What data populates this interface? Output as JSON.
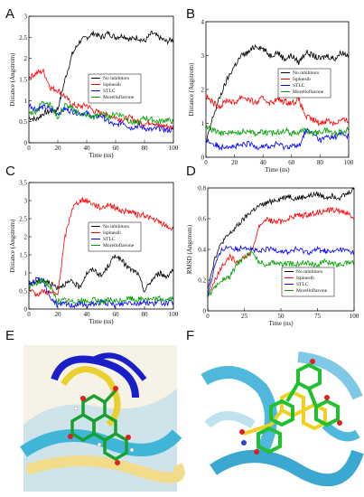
{
  "colors": {
    "none": "#000000",
    "ispinesib": "#ff0000",
    "stlc": "#0000ff",
    "morelloflavone": "#00a000"
  },
  "chart_data": [
    {
      "panel": "A",
      "type": "line",
      "xlabel": "Time (ns)",
      "ylabel": "Distance (Angstrom)",
      "xlim": [
        0,
        100
      ],
      "ylim": [
        0,
        3
      ],
      "xticks": [
        "0",
        "20",
        "40",
        "60",
        "80",
        "100"
      ],
      "yticks": [
        "0",
        "0.5",
        "1",
        "1.5",
        "2",
        "2.5",
        "3"
      ],
      "x": [
        0,
        5,
        10,
        15,
        20,
        25,
        30,
        35,
        40,
        45,
        50,
        55,
        60,
        65,
        70,
        75,
        80,
        85,
        90,
        95,
        100
      ],
      "series": [
        {
          "name": "No inhibitors",
          "color": "#000000",
          "values": [
            0.6,
            0.55,
            0.7,
            0.75,
            0.8,
            1.5,
            2.1,
            2.4,
            2.5,
            2.6,
            2.5,
            2.6,
            2.5,
            2.55,
            2.45,
            2.5,
            2.4,
            2.6,
            2.5,
            2.4,
            2.45
          ]
        },
        {
          "name": "Ispinesib",
          "color": "#ff0000",
          "values": [
            1.55,
            1.65,
            1.7,
            1.3,
            1.25,
            1.1,
            0.9,
            0.85,
            0.9,
            0.75,
            0.7,
            0.65,
            0.6,
            0.55,
            0.6,
            0.5,
            0.45,
            0.5,
            0.4,
            0.4,
            0.35
          ]
        },
        {
          "name": "STLC",
          "color": "#0000ff",
          "values": [
            0.9,
            0.8,
            0.85,
            0.8,
            0.7,
            0.8,
            0.75,
            0.7,
            0.7,
            0.6,
            0.65,
            0.5,
            0.4,
            0.5,
            0.35,
            0.4,
            0.35,
            0.3,
            0.35,
            0.3,
            0.3
          ]
        },
        {
          "name": "Morelloflavone",
          "color": "#00a000",
          "values": [
            0.7,
            0.75,
            1.0,
            0.9,
            0.6,
            0.9,
            0.8,
            0.7,
            0.65,
            0.6,
            0.7,
            0.6,
            0.7,
            0.65,
            0.5,
            0.45,
            0.6,
            0.55,
            0.5,
            0.55,
            0.5
          ]
        }
      ]
    },
    {
      "panel": "B",
      "type": "line",
      "xlabel": "Time (ns)",
      "ylabel": "Distance (Angstrom)",
      "xlim": [
        0,
        100
      ],
      "ylim": [
        0,
        4
      ],
      "xticks": [
        "0",
        "20",
        "40",
        "60",
        "80",
        "100"
      ],
      "yticks": [
        "0",
        "1",
        "2",
        "3",
        "4"
      ],
      "x": [
        0,
        5,
        10,
        15,
        20,
        25,
        30,
        35,
        40,
        45,
        50,
        55,
        60,
        65,
        70,
        75,
        80,
        85,
        90,
        95,
        100
      ],
      "series": [
        {
          "name": "No inhibitors",
          "color": "#000000",
          "values": [
            0.4,
            1.2,
            1.8,
            2.3,
            2.7,
            3.0,
            3.1,
            3.3,
            3.2,
            3.0,
            3.1,
            2.9,
            3.0,
            2.8,
            3.1,
            3.0,
            2.9,
            3.0,
            2.9,
            3.1,
            3.0
          ]
        },
        {
          "name": "Ispinesib",
          "color": "#ff0000",
          "values": [
            1.8,
            1.6,
            1.5,
            1.7,
            1.6,
            1.8,
            1.7,
            1.6,
            1.75,
            1.6,
            1.7,
            1.65,
            1.6,
            1.7,
            1.2,
            1.1,
            1.0,
            1.1,
            1.0,
            1.1,
            1.05
          ]
        },
        {
          "name": "STLC",
          "color": "#0000ff",
          "values": [
            0.5,
            0.4,
            0.3,
            0.35,
            0.3,
            0.35,
            0.4,
            0.3,
            0.35,
            0.3,
            0.4,
            0.3,
            0.35,
            0.3,
            0.8,
            0.7,
            0.5,
            0.6,
            0.6,
            0.7,
            0.6
          ]
        },
        {
          "name": "Morelloflavone",
          "color": "#00a000",
          "values": [
            0.9,
            0.8,
            0.7,
            0.75,
            0.7,
            0.75,
            0.8,
            0.7,
            0.75,
            0.7,
            0.75,
            0.8,
            0.7,
            0.75,
            0.8,
            0.7,
            0.75,
            0.8,
            0.7,
            0.75,
            0.8
          ]
        }
      ]
    },
    {
      "panel": "C",
      "type": "line",
      "xlabel": "Time (ns)",
      "ylabel": "Distance (Angstrom)",
      "xlim": [
        0,
        100
      ],
      "ylim": [
        0,
        3.5
      ],
      "xticks": [
        "0",
        "20",
        "40",
        "60",
        "80",
        "100"
      ],
      "yticks": [
        "0",
        "0.5",
        "1",
        "1.5",
        "2",
        "2.5",
        "3",
        "3.5"
      ],
      "x": [
        0,
        5,
        10,
        15,
        20,
        25,
        30,
        35,
        40,
        45,
        50,
        55,
        60,
        65,
        70,
        75,
        80,
        85,
        90,
        95,
        100
      ],
      "series": [
        {
          "name": "No inhibitors",
          "color": "#000000",
          "values": [
            0.7,
            0.75,
            0.8,
            0.7,
            0.6,
            0.7,
            0.75,
            0.6,
            1.0,
            1.1,
            0.9,
            1.2,
            1.5,
            1.3,
            1.1,
            1.0,
            0.5,
            0.8,
            1.0,
            0.9,
            1.1
          ]
        },
        {
          "name": "Ispinesib",
          "color": "#ff0000",
          "values": [
            0.5,
            0.4,
            0.5,
            0.45,
            0.4,
            2.0,
            2.8,
            3.0,
            3.0,
            2.9,
            2.8,
            2.9,
            2.8,
            2.7,
            2.7,
            2.6,
            2.6,
            2.5,
            2.4,
            2.3,
            2.2
          ]
        },
        {
          "name": "STLC",
          "color": "#0000ff",
          "values": [
            0.7,
            0.8,
            0.8,
            0.3,
            0.1,
            0.15,
            0.1,
            0.15,
            0.1,
            0.15,
            0.2,
            0.15,
            0.1,
            0.15,
            0.2,
            0.15,
            0.2,
            0.15,
            0.2,
            0.15,
            0.2
          ]
        },
        {
          "name": "Morelloflavone",
          "color": "#00a000",
          "values": [
            0.6,
            0.7,
            0.8,
            0.6,
            0.2,
            0.25,
            0.2,
            0.25,
            0.2,
            0.25,
            0.2,
            0.25,
            0.2,
            0.25,
            0.3,
            0.25,
            0.3,
            0.25,
            0.3,
            0.25,
            0.3
          ]
        }
      ]
    },
    {
      "panel": "D",
      "type": "line",
      "xlabel": "Time (ns)",
      "ylabel": "RMSD (Angstrom)",
      "xlim": [
        0,
        100
      ],
      "ylim": [
        0,
        0.8
      ],
      "xticks": [
        "0",
        "25",
        "50",
        "75",
        "100"
      ],
      "yticks": [
        "0",
        "0.2",
        "0.4",
        "0.6",
        "0.8"
      ],
      "x": [
        0,
        5,
        10,
        15,
        20,
        25,
        30,
        35,
        40,
        45,
        50,
        55,
        60,
        65,
        70,
        75,
        80,
        85,
        90,
        95,
        100
      ],
      "series": [
        {
          "name": "No inhibitors",
          "color": "#000000",
          "values": [
            0.15,
            0.35,
            0.45,
            0.5,
            0.55,
            0.6,
            0.65,
            0.68,
            0.7,
            0.72,
            0.73,
            0.75,
            0.73,
            0.74,
            0.75,
            0.76,
            0.74,
            0.75,
            0.74,
            0.76,
            0.8
          ]
        },
        {
          "name": "Ispinesib",
          "color": "#ff0000",
          "values": [
            0.1,
            0.2,
            0.3,
            0.35,
            0.32,
            0.35,
            0.38,
            0.55,
            0.6,
            0.58,
            0.58,
            0.6,
            0.62,
            0.62,
            0.63,
            0.64,
            0.65,
            0.66,
            0.65,
            0.64,
            0.6
          ]
        },
        {
          "name": "STLC",
          "color": "#0000ff",
          "values": [
            0.1,
            0.3,
            0.4,
            0.42,
            0.4,
            0.42,
            0.4,
            0.38,
            0.4,
            0.4,
            0.39,
            0.38,
            0.4,
            0.39,
            0.38,
            0.4,
            0.39,
            0.38,
            0.4,
            0.39,
            0.38
          ]
        },
        {
          "name": "Morelloflavone",
          "color": "#00a000",
          "values": [
            0.1,
            0.15,
            0.2,
            0.22,
            0.3,
            0.35,
            0.38,
            0.32,
            0.3,
            0.32,
            0.3,
            0.31,
            0.3,
            0.32,
            0.31,
            0.3,
            0.32,
            0.31,
            0.3,
            0.31,
            0.32
          ]
        }
      ]
    }
  ],
  "panels": {
    "A": "A",
    "B": "B",
    "C": "C",
    "D": "D",
    "E": "E",
    "F": "F"
  }
}
